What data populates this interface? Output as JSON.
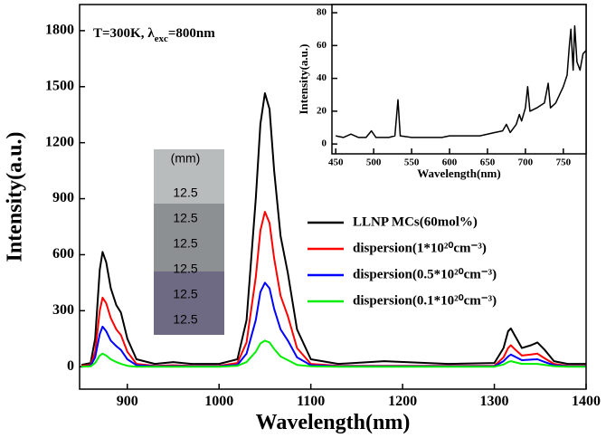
{
  "chart_data": [
    {
      "type": "line",
      "x_label": "Wavelength(nm)",
      "y_label": "Intensity(a.u.)",
      "annotation": {
        "text": "T=300K, λ",
        "sub": "exc",
        "tail": "=800nm"
      },
      "photo_labels": [
        "(mm)",
        "12.5",
        "12.5",
        "12.5",
        "12.5",
        "12.5",
        "12.5"
      ],
      "xlim": [
        848,
        1400
      ],
      "xticks": [
        900,
        1000,
        1100,
        1200,
        1300,
        1400
      ],
      "ylim": [
        -120,
        1940
      ],
      "yticks": [
        0,
        300,
        600,
        900,
        1200,
        1500,
        1800
      ],
      "x": [
        850,
        860,
        865,
        870,
        873,
        877,
        882,
        888,
        893,
        900,
        910,
        930,
        950,
        970,
        1000,
        1020,
        1030,
        1040,
        1045,
        1050,
        1055,
        1060,
        1067,
        1075,
        1085,
        1100,
        1130,
        1180,
        1250,
        1300,
        1310,
        1315,
        1318,
        1322,
        1330,
        1340,
        1347,
        1355,
        1365,
        1380,
        1400
      ],
      "series": [
        {
          "name": "LLNP MCs(60mol%)",
          "color": "#000000",
          "values": [
            10,
            20,
            150,
            520,
            615,
            560,
            420,
            330,
            290,
            150,
            40,
            15,
            25,
            15,
            15,
            40,
            250,
            900,
            1300,
            1465,
            1380,
            1050,
            700,
            500,
            200,
            40,
            15,
            30,
            15,
            20,
            100,
            190,
            205,
            170,
            100,
            115,
            130,
            90,
            30,
            15,
            15
          ]
        },
        {
          "name": "dispersion(1*10²⁰cm⁻³)",
          "color": "#ff0000",
          "values": [
            5,
            10,
            80,
            300,
            370,
            340,
            260,
            200,
            170,
            80,
            15,
            5,
            8,
            5,
            5,
            20,
            130,
            480,
            730,
            830,
            770,
            580,
            380,
            270,
            100,
            15,
            5,
            5,
            5,
            5,
            50,
            100,
            115,
            95,
            60,
            65,
            70,
            45,
            15,
            5,
            5
          ]
        },
        {
          "name": "dispersion(0.5*10²⁰cm⁻³)",
          "color": "#0000ff",
          "values": [
            0,
            5,
            50,
            175,
            215,
            190,
            140,
            110,
            90,
            40,
            8,
            2,
            3,
            2,
            2,
            10,
            70,
            250,
            400,
            450,
            420,
            310,
            200,
            140,
            50,
            8,
            2,
            2,
            2,
            2,
            30,
            55,
            65,
            55,
            35,
            38,
            40,
            25,
            8,
            2,
            2
          ]
        },
        {
          "name": "dispersion(0.1*10²⁰cm⁻³)",
          "color": "#00ee00",
          "values": [
            0,
            2,
            20,
            60,
            70,
            60,
            40,
            25,
            15,
            5,
            0,
            0,
            0,
            0,
            0,
            5,
            25,
            80,
            125,
            140,
            130,
            95,
            55,
            35,
            10,
            2,
            0,
            0,
            0,
            0,
            12,
            25,
            30,
            25,
            15,
            15,
            15,
            10,
            3,
            0,
            0
          ]
        }
      ]
    },
    {
      "type": "line",
      "x_label": "Wavelength(nm)",
      "y_label": "Intensity(a.u.)",
      "xlim": [
        445,
        780
      ],
      "xticks": [
        450,
        500,
        550,
        600,
        650,
        700,
        750
      ],
      "ylim": [
        -6,
        85
      ],
      "yticks": [
        0,
        20,
        40,
        60,
        80
      ],
      "x": [
        450,
        460,
        470,
        480,
        490,
        497,
        503,
        520,
        528,
        532,
        535,
        550,
        570,
        590,
        600,
        620,
        640,
        660,
        670,
        675,
        680,
        688,
        692,
        695,
        700,
        703,
        706,
        715,
        725,
        730,
        733,
        740,
        750,
        755,
        758,
        760,
        763,
        765,
        768,
        772,
        776,
        780
      ],
      "series": [
        {
          "color": "#000000",
          "values": [
            5,
            4,
            6,
            4,
            4,
            8,
            4,
            4,
            5,
            27,
            5,
            4,
            4,
            4,
            5,
            5,
            5,
            7,
            8,
            12,
            7,
            12,
            18,
            14,
            22,
            35,
            20,
            22,
            25,
            37,
            22,
            25,
            35,
            42,
            60,
            70,
            45,
            72,
            50,
            45,
            55,
            57
          ]
        }
      ]
    }
  ]
}
